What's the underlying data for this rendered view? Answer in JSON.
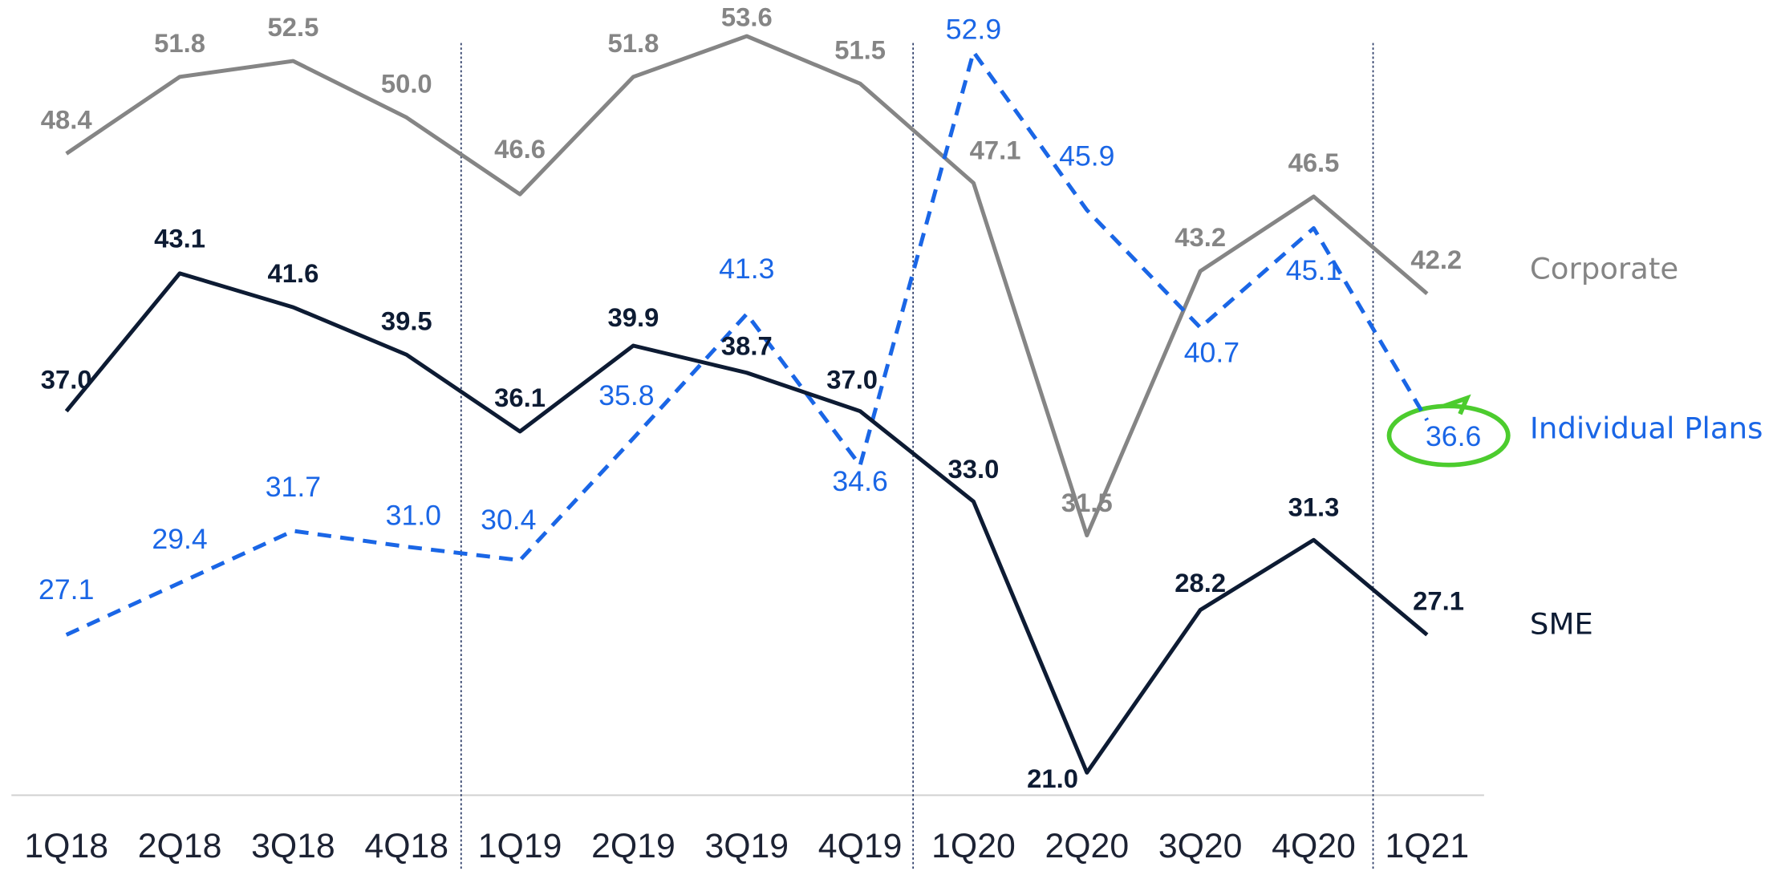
{
  "chart_data": {
    "type": "line",
    "categories": [
      "1Q18",
      "2Q18",
      "3Q18",
      "4Q18",
      "1Q19",
      "2Q19",
      "3Q19",
      "4Q19",
      "1Q20",
      "2Q20",
      "3Q20",
      "4Q20",
      "1Q21"
    ],
    "ylim": [
      20,
      55
    ],
    "series": [
      {
        "name": "Corporate",
        "color": "#858585",
        "dash": false,
        "values": [
          48.4,
          51.8,
          52.5,
          50.0,
          46.6,
          51.8,
          53.6,
          51.5,
          47.1,
          31.5,
          43.2,
          46.5,
          42.2
        ],
        "value_labels": [
          "48.4",
          "51.8",
          "52.5",
          "50.0",
          "46.6",
          "51.8",
          "53.6",
          "51.5",
          "47.1",
          "31.5",
          "43.2",
          "46.5",
          "42.2"
        ]
      },
      {
        "name": "Individual Plans",
        "color": "#1a66e6",
        "dash": true,
        "values": [
          27.1,
          29.4,
          31.7,
          31.0,
          30.4,
          35.8,
          41.3,
          34.6,
          52.9,
          45.9,
          40.7,
          45.1,
          36.6
        ],
        "value_labels": [
          "27.1",
          "29.4",
          "31.7",
          "31.0",
          "30.4",
          "35.8",
          "41.3",
          "34.6",
          "52.9",
          "45.9",
          "40.7",
          "45.1",
          "36.6"
        ]
      },
      {
        "name": "SME",
        "color": "#0d1b33",
        "dash": false,
        "values": [
          37.0,
          43.1,
          41.6,
          39.5,
          36.1,
          39.9,
          38.7,
          37.0,
          33.0,
          21.0,
          28.2,
          31.3,
          27.1
        ],
        "value_labels": [
          "37.0",
          "43.1",
          "41.6",
          "39.5",
          "36.1",
          "39.9",
          "38.7",
          "37.0",
          "33.0",
          "21.0",
          "28.2",
          "31.3",
          "27.1"
        ]
      }
    ]
  }
}
